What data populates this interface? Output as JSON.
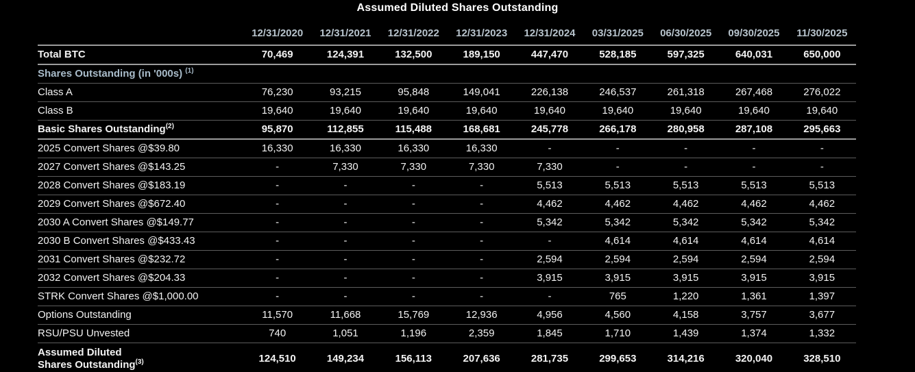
{
  "title": "Assumed Diluted Shares Outstanding",
  "chart_data": {
    "type": "table",
    "title": "Assumed Diluted Shares Outstanding",
    "units_note": "shares in '000s",
    "columns": [
      "12/31/2020",
      "12/31/2021",
      "12/31/2022",
      "12/31/2023",
      "12/31/2024",
      "03/31/2025",
      "06/30/2025",
      "09/30/2025",
      "11/30/2025"
    ],
    "rows": [
      {
        "label": "Total BTC",
        "style": "bold",
        "sep": "thick",
        "values": [
          "70,469",
          "124,391",
          "132,500",
          "189,150",
          "447,470",
          "528,185",
          "597,325",
          "640,031",
          "650,000"
        ]
      },
      {
        "label": "Shares Outstanding (in '000s)",
        "sup": "(1)",
        "sup_gap": true,
        "style": "section",
        "sep": "thin",
        "values": [
          "",
          "",
          "",
          "",
          "",
          "",
          "",
          "",
          ""
        ]
      },
      {
        "label": "Class A",
        "style": "regular",
        "sep": "thin",
        "values": [
          "76,230",
          "93,215",
          "95,848",
          "149,041",
          "226,138",
          "246,537",
          "261,318",
          "267,468",
          "276,022"
        ]
      },
      {
        "label": "Class B",
        "style": "regular",
        "sep": "thin",
        "values": [
          "19,640",
          "19,640",
          "19,640",
          "19,640",
          "19,640",
          "19,640",
          "19,640",
          "19,640",
          "19,640"
        ]
      },
      {
        "label": "Basic Shares Outstanding",
        "sup": "(2)",
        "style": "bold",
        "sep": "thick",
        "values": [
          "95,870",
          "112,855",
          "115,488",
          "168,681",
          "245,778",
          "266,178",
          "280,958",
          "287,108",
          "295,663"
        ]
      },
      {
        "label": "2025 Convert Shares @$39.80",
        "style": "regular",
        "sep": "thin",
        "values": [
          "16,330",
          "16,330",
          "16,330",
          "16,330",
          "-",
          "-",
          "-",
          "-",
          "-"
        ]
      },
      {
        "label": "2027 Convert Shares @$143.25",
        "style": "regular",
        "sep": "thin",
        "values": [
          "-",
          "7,330",
          "7,330",
          "7,330",
          "7,330",
          "-",
          "-",
          "-",
          "-"
        ]
      },
      {
        "label": "2028 Convert Shares @$183.19",
        "style": "regular",
        "sep": "thin",
        "values": [
          "-",
          "-",
          "-",
          "-",
          "5,513",
          "5,513",
          "5,513",
          "5,513",
          "5,513"
        ]
      },
      {
        "label": "2029 Convert Shares @$672.40",
        "style": "regular",
        "sep": "thin",
        "values": [
          "-",
          "-",
          "-",
          "-",
          "4,462",
          "4,462",
          "4,462",
          "4,462",
          "4,462"
        ]
      },
      {
        "label": "2030 A Convert Shares @$149.77",
        "style": "regular",
        "sep": "thin",
        "values": [
          "-",
          "-",
          "-",
          "-",
          "5,342",
          "5,342",
          "5,342",
          "5,342",
          "5,342"
        ]
      },
      {
        "label": "2030 B Convert Shares @$433.43",
        "style": "regular",
        "sep": "thin",
        "values": [
          "-",
          "-",
          "-",
          "-",
          "-",
          "4,614",
          "4,614",
          "4,614",
          "4,614"
        ]
      },
      {
        "label": "2031 Convert Shares @$232.72",
        "style": "regular",
        "sep": "thin",
        "values": [
          "-",
          "-",
          "-",
          "-",
          "2,594",
          "2,594",
          "2,594",
          "2,594",
          "2,594"
        ]
      },
      {
        "label": "2032 Convert Shares @$204.33",
        "style": "regular",
        "sep": "thin",
        "values": [
          "-",
          "-",
          "-",
          "-",
          "3,915",
          "3,915",
          "3,915",
          "3,915",
          "3,915"
        ]
      },
      {
        "label": "STRK Convert Shares @$1,000.00",
        "style": "regular",
        "sep": "thin",
        "values": [
          "-",
          "-",
          "-",
          "-",
          "-",
          "765",
          "1,220",
          "1,361",
          "1,397"
        ]
      },
      {
        "label": "Options Outstanding",
        "style": "regular",
        "sep": "thin",
        "values": [
          "11,570",
          "11,668",
          "15,769",
          "12,936",
          "4,956",
          "4,560",
          "4,158",
          "3,757",
          "3,677"
        ]
      },
      {
        "label": "RSU/PSU Unvested",
        "style": "regular",
        "sep": "thin",
        "values": [
          "740",
          "1,051",
          "1,196",
          "2,359",
          "1,845",
          "1,710",
          "1,439",
          "1,374",
          "1,332"
        ]
      },
      {
        "label": "Assumed Diluted",
        "label2": "Shares Outstanding",
        "sup2": "(3)",
        "style": "total",
        "sep": "thick",
        "values": [
          "124,510",
          "149,234",
          "156,113",
          "207,636",
          "281,735",
          "299,653",
          "314,216",
          "320,040",
          "328,510"
        ]
      }
    ]
  },
  "colors": {
    "background": "#000000",
    "text": "#f2f2f2",
    "header_text": "#b7c3cc",
    "section_text": "#a9bcca",
    "rule_thick": "#9c9c9c",
    "rule_thin": "#5d5d5d"
  }
}
